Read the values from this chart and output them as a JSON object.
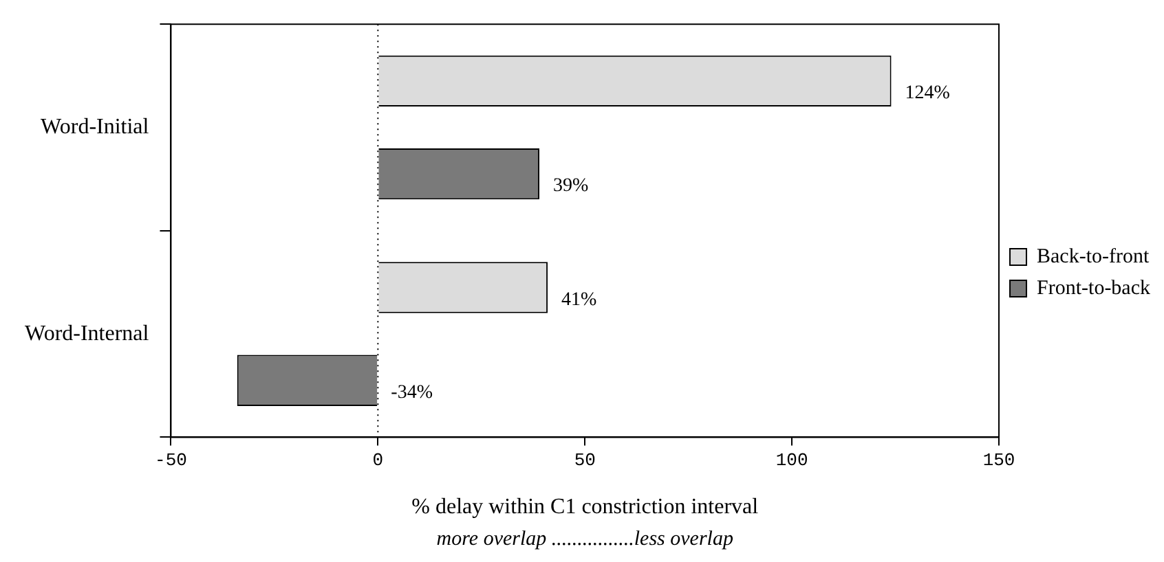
{
  "chart_data": {
    "type": "bar",
    "orientation": "horizontal",
    "categories": [
      "Word-Initial",
      "Word-Internal"
    ],
    "series": [
      {
        "name": "Back-to-front",
        "color": "#dcdcdc",
        "values": [
          124,
          41
        ],
        "value_labels": [
          "124%",
          "41%"
        ]
      },
      {
        "name": "Front-to-back",
        "color": "#7a7a7a",
        "values": [
          39,
          -34
        ],
        "value_labels": [
          "39%",
          "-34%"
        ]
      }
    ],
    "xlim": [
      -50,
      150
    ],
    "xticks": [
      -50,
      0,
      50,
      100,
      150
    ],
    "xlabel": "% delay within C1 constriction interval",
    "annotations": [
      "more overlap ................less overlap"
    ],
    "ref_lines": [
      {
        "axis": "x",
        "value": 0,
        "line_style": "dotted",
        "color": "#000000"
      }
    ],
    "grid": false,
    "legend": "right"
  }
}
